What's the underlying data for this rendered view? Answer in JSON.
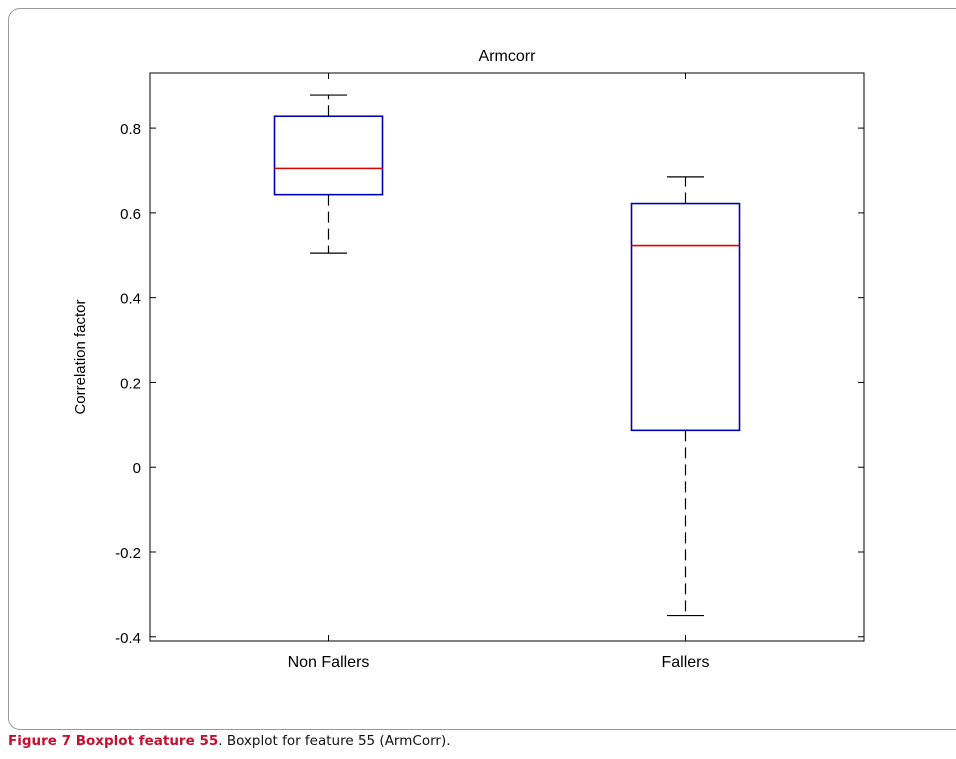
{
  "chart_data": {
    "type": "boxplot",
    "title": "Armcorr",
    "xlabel": "",
    "ylabel": "Correlation factor",
    "ylim": [
      -0.41,
      0.93
    ],
    "yticks": [
      -0.4,
      -0.2,
      0,
      0.2,
      0.4,
      0.6,
      0.8
    ],
    "ytick_labels": [
      "-0.4",
      "-0.2",
      "0",
      "0.2",
      "0.4",
      "0.6",
      "0.8"
    ],
    "categories": [
      "Non Fallers",
      "Fallers"
    ],
    "boxes": [
      {
        "category": "Non Fallers",
        "min": 0.505,
        "q1": 0.643,
        "median": 0.705,
        "q3": 0.828,
        "max": 0.878
      },
      {
        "category": "Fallers",
        "min": -0.35,
        "q1": 0.087,
        "median": 0.523,
        "q3": 0.622,
        "max": 0.685
      }
    ],
    "grid": false,
    "colors": {
      "box": "#0000b4",
      "median": "#e00000",
      "whisker": "#000000"
    }
  },
  "caption": {
    "lead": "Figure 7 Boxplot feature 55",
    "text": ". Boxplot for feature 55 (ArmCorr)."
  }
}
